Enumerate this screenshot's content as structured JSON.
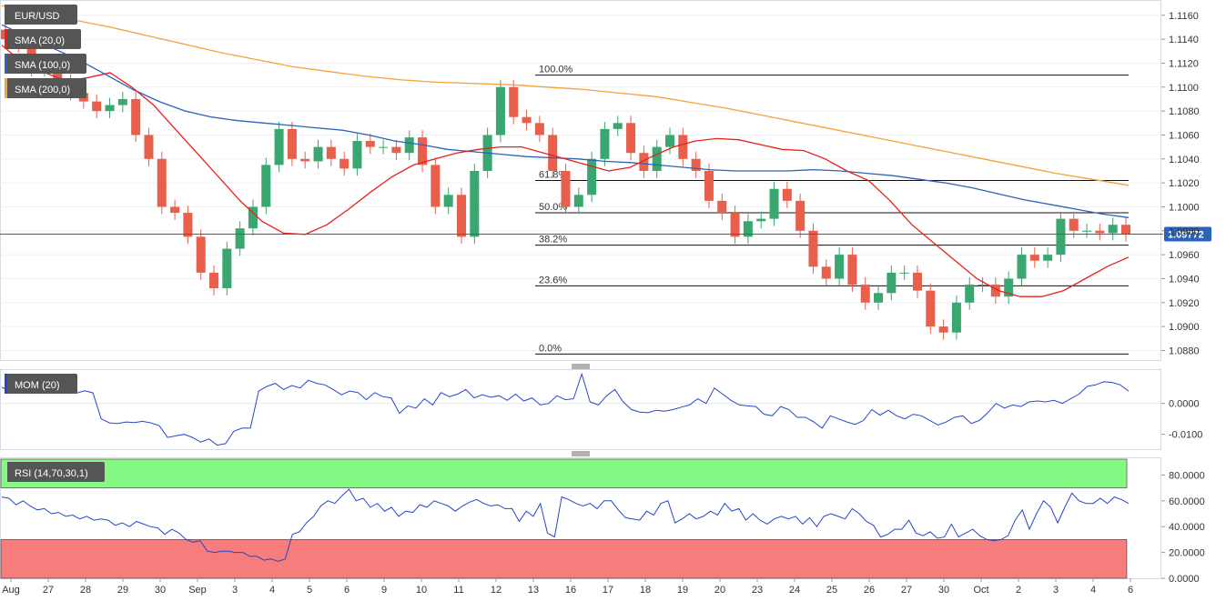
{
  "chart_data": [
    {
      "type": "candlestick",
      "panel": "price",
      "title": "EUR/USD",
      "x_labels": [
        "Aug",
        "27",
        "28",
        "29",
        "30",
        "Sep",
        "3",
        "4",
        "5",
        "6",
        "9",
        "10",
        "11",
        "12",
        "13",
        "16",
        "17",
        "18",
        "19",
        "20",
        "23",
        "24",
        "25",
        "26",
        "27",
        "30",
        "Oct",
        "2",
        "3",
        "4",
        "6"
      ],
      "y_ticks": [
        "1.1160",
        "1.1140",
        "1.1120",
        "1.1100",
        "1.1080",
        "1.1060",
        "1.1040",
        "1.1020",
        "1.1000",
        "1.0980",
        "1.0960",
        "1.0940",
        "1.0920",
        "1.0900",
        "1.0880"
      ],
      "ylim": [
        1.0872,
        1.1172
      ],
      "last_price": "1.09772",
      "last_price_value": 1.09772,
      "indicators": [
        {
          "name": "SMA (20,0)",
          "color": "#e8201c"
        },
        {
          "name": "SMA (100,0)",
          "color": "#2b63b8"
        },
        {
          "name": "SMA (200,0)",
          "color": "#f5a23a"
        }
      ],
      "fibonacci": [
        {
          "label": "100.0%",
          "value": 1.111
        },
        {
          "label": "61.8%",
          "value": 1.1022
        },
        {
          "label": "50.0%",
          "value": 1.0995
        },
        {
          "label": "38.2%",
          "value": 1.0968
        },
        {
          "label": "23.6%",
          "value": 1.0934
        },
        {
          "label": "0.0%",
          "value": 1.0877
        }
      ],
      "sma20": [
        1.1135,
        1.112,
        1.1112,
        1.1105,
        1.1108,
        1.1112,
        1.11,
        1.1085,
        1.1065,
        1.1045,
        1.1025,
        1.1005,
        1.0988,
        1.0978,
        1.0977,
        1.0985,
        1.0998,
        1.1012,
        1.1025,
        1.1035,
        1.104,
        1.1045,
        1.1048,
        1.105,
        1.105,
        1.1045,
        1.104,
        1.1035,
        1.103,
        1.1033,
        1.1042,
        1.105,
        1.1055,
        1.1057,
        1.1056,
        1.1052,
        1.1048,
        1.1047,
        1.104,
        1.103,
        1.1022,
        1.1005,
        1.0985,
        1.097,
        1.0955,
        1.094,
        1.093,
        1.0925,
        1.0925,
        1.093,
        1.094,
        1.095,
        1.0958
      ],
      "sma100": [
        1.1152,
        1.1142,
        1.1132,
        1.1122,
        1.111,
        1.1098,
        1.1088,
        1.108,
        1.1075,
        1.1072,
        1.107,
        1.1068,
        1.1066,
        1.1064,
        1.106,
        1.1055,
        1.1052,
        1.1048,
        1.1046,
        1.1044,
        1.1042,
        1.1041,
        1.104,
        1.1038,
        1.1037,
        1.1035,
        1.1033,
        1.1031,
        1.103,
        1.103,
        1.103,
        1.1031,
        1.103,
        1.1028,
        1.1026,
        1.1023,
        1.102,
        1.1016,
        1.1011,
        1.1006,
        1.1002,
        1.0998,
        1.0994,
        1.0991
      ],
      "sma200": [
        1.1168,
        1.1162,
        1.1156,
        1.115,
        1.1143,
        1.1136,
        1.1129,
        1.1123,
        1.1117,
        1.1113,
        1.1109,
        1.1106,
        1.1104,
        1.1103,
        1.1102,
        1.11,
        1.1098,
        1.1095,
        1.1092,
        1.1087,
        1.1082,
        1.1076,
        1.107,
        1.1064,
        1.1058,
        1.1052,
        1.1046,
        1.104,
        1.1034,
        1.1028,
        1.1023,
        1.1018
      ],
      "closes": [
        1.114,
        1.1135,
        1.1115,
        1.112,
        1.1105,
        1.1095,
        1.1088,
        1.108,
        1.1085,
        1.109,
        1.106,
        1.104,
        1.1,
        1.0995,
        1.0975,
        1.0945,
        1.0932,
        1.0965,
        1.0982,
        1.1,
        1.1035,
        1.1065,
        1.104,
        1.1038,
        1.105,
        1.104,
        1.1032,
        1.1055,
        1.105,
        1.105,
        1.1045,
        1.1058,
        1.1035,
        1.1,
        1.101,
        1.0975,
        1.103,
        1.106,
        1.11,
        1.1075,
        1.107,
        1.106,
        1.103,
        1.1,
        1.101,
        1.104,
        1.1065,
        1.107,
        1.1045,
        1.103,
        1.105,
        1.106,
        1.104,
        1.103,
        1.1005,
        1.0995,
        1.0975,
        1.0988,
        1.099,
        1.1015,
        1.1005,
        1.098,
        1.095,
        1.094,
        1.096,
        1.0935,
        1.092,
        1.0928,
        1.0945,
        1.0945,
        1.093,
        1.09,
        1.0895,
        1.092,
        1.0935,
        1.0935,
        1.0925,
        1.094,
        1.096,
        1.0955,
        1.096,
        1.099,
        1.098,
        1.098,
        1.0978,
        1.0985,
        1.0977
      ]
    },
    {
      "type": "line",
      "panel": "momentum",
      "title": "MOM (20)",
      "y_ticks": [
        "0.0000",
        "-0.0100"
      ],
      "ylim": [
        -0.0148,
        0.0108
      ],
      "values": [
        0.0052,
        0.004,
        0.0046,
        0.0038,
        0.0048,
        0.0035,
        0.004,
        0.0043,
        0.0042,
        0.0033,
        0.0041,
        0.0034,
        -0.005,
        -0.0063,
        -0.0065,
        -0.006,
        -0.0062,
        -0.0058,
        -0.0063,
        -0.0072,
        -0.011,
        -0.0105,
        -0.01,
        -0.011,
        -0.0125,
        -0.0115,
        -0.0135,
        -0.013,
        -0.009,
        -0.008,
        -0.008,
        0.004,
        0.0055,
        0.0065,
        0.0045,
        0.0058,
        0.005,
        0.0075,
        0.0065,
        0.006,
        0.0045,
        0.0028,
        0.004,
        0.0035,
        0.0012,
        0.0035,
        0.0022,
        0.0018,
        -0.0032,
        -0.0008,
        -0.0015,
        0.0015,
        -0.0005,
        0.0035,
        0.0022,
        0.003,
        0.0045,
        0.0018,
        0.0028,
        0.002,
        0.0025,
        0.001,
        0.003,
        0.0008,
        0.0018,
        -0.0005,
        0.0,
        0.0025,
        0.0012,
        0.0015,
        0.0095,
        0.0005,
        -0.0005,
        0.0025,
        0.0045,
        0.0005,
        -0.002,
        -0.0028,
        -0.003,
        -0.0022,
        -0.0025,
        -0.002,
        -0.0012,
        -0.0005,
        0.0015,
        0.0,
        0.005,
        0.003,
        0.001,
        -0.0005,
        -0.0008,
        -0.001,
        -0.0035,
        -0.004,
        -0.001,
        -0.002,
        -0.0045,
        -0.0045,
        -0.006,
        -0.008,
        -0.004,
        -0.005,
        -0.006,
        -0.0068,
        -0.0055,
        -0.002,
        -0.0038,
        -0.0022,
        -0.004,
        -0.005,
        -0.0035,
        -0.004,
        -0.0055,
        -0.007,
        -0.006,
        -0.0045,
        -0.004,
        -0.0065,
        -0.0055,
        -0.003,
        0.0,
        -0.0015,
        -0.0005,
        -0.001,
        0.0005,
        0.0008,
        0.0005,
        0.001,
        0.0,
        0.0015,
        0.003,
        0.0055,
        0.006,
        0.007,
        0.0068,
        0.006,
        0.004
      ]
    },
    {
      "type": "line",
      "panel": "rsi",
      "title": "RSI (14,70,30,1)",
      "y_ticks": [
        "80.0000",
        "60.0000",
        "40.0000",
        "20.0000",
        "0.0000"
      ],
      "ylim": [
        0,
        93
      ],
      "overbought": 70,
      "oversold": 30,
      "overbought_color": "#84f984",
      "oversold_color": "#f77c7c",
      "values": [
        63,
        62,
        57,
        60,
        56,
        53,
        54,
        50,
        51,
        48,
        49,
        46,
        48,
        45,
        46,
        45,
        41,
        43,
        40,
        44,
        42,
        40,
        39,
        34,
        38,
        35,
        30,
        28,
        29,
        21,
        20,
        21,
        21,
        20,
        20,
        17,
        17,
        14,
        15,
        13,
        15,
        34,
        36,
        43,
        48,
        56,
        60,
        58,
        64,
        69,
        60,
        62,
        55,
        58,
        52,
        55,
        48,
        52,
        51,
        57,
        55,
        60,
        58,
        56,
        52,
        56,
        59,
        61,
        58,
        56,
        57,
        54,
        54,
        44,
        52,
        48,
        58,
        35,
        32,
        63,
        61,
        58,
        56,
        58,
        54,
        60,
        60,
        53,
        47,
        46,
        45,
        52,
        49,
        58,
        60,
        43,
        46,
        50,
        46,
        48,
        52,
        49,
        58,
        52,
        54,
        45,
        50,
        45,
        42,
        46,
        48,
        46,
        48,
        42,
        47,
        40,
        48,
        50,
        48,
        46,
        54,
        50,
        44,
        41,
        32,
        34,
        38,
        38,
        45,
        35,
        33,
        36,
        31,
        32,
        42,
        32,
        35,
        38,
        33,
        30,
        29,
        30,
        33,
        45,
        53,
        38,
        50,
        60,
        55,
        43,
        55,
        66,
        60,
        58,
        58,
        62,
        58,
        63,
        61,
        58
      ]
    }
  ]
}
